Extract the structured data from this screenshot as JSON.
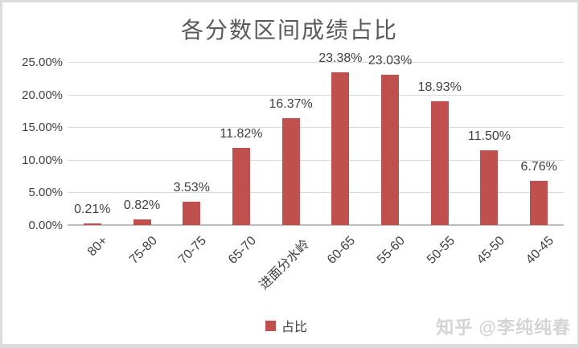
{
  "watermark": "知乎 @李纯纯春",
  "chart_data": {
    "type": "bar",
    "title": "各分数区间成绩占比",
    "categories": [
      "80+",
      "75-80",
      "70-75",
      "65-70",
      "进面分水岭",
      "60-65",
      "55-60",
      "50-55",
      "45-50",
      "40-45"
    ],
    "values": [
      0.21,
      0.82,
      3.53,
      11.82,
      16.37,
      23.38,
      23.03,
      18.93,
      11.5,
      6.76
    ],
    "data_labels": [
      "0.21%",
      "0.82%",
      "3.53%",
      "11.82%",
      "16.37%",
      "23.38%",
      "23.03%",
      "18.93%",
      "11.50%",
      "6.76%"
    ],
    "series_name": "占比",
    "xlabel": "",
    "ylabel": "",
    "ylim": [
      0,
      25
    ],
    "y_tick_labels": [
      "0.00%",
      "5.00%",
      "10.00%",
      "15.00%",
      "20.00%",
      "25.00%"
    ],
    "y_tick_values": [
      0,
      5,
      10,
      15,
      20,
      25
    ],
    "grid": true,
    "legend_position": "bottom",
    "bar_color": "#c0504d",
    "gridline_color": "#d9d9d9"
  }
}
